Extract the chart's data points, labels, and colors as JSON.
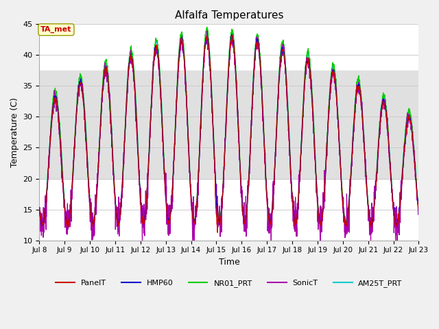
{
  "title": "Alfalfa Temperatures",
  "xlabel": "Time",
  "ylabel": "Temperature (C)",
  "annotation": "TA_met",
  "ylim": [
    10,
    45
  ],
  "xlim_days": [
    8,
    23
  ],
  "bg_band_ymin": 20,
  "bg_band_ymax": 37.5,
  "series_colors": {
    "PanelT": "#cc0000",
    "HMP60": "#0000cc",
    "NR01_PRT": "#00cc00",
    "SonicT": "#aa00aa",
    "AM25T_PRT": "#00cccc"
  },
  "legend_colors": [
    "#cc0000",
    "#0000cc",
    "#00cc00",
    "#aa00aa",
    "#00cccc"
  ],
  "legend_labels": [
    "PanelT",
    "HMP60",
    "NR01_PRT",
    "SonicT",
    "AM25T_PRT"
  ],
  "tick_labels": [
    "Jul 8",
    "Jul 9",
    "Jul 10",
    "Jul 11",
    "Jul 12",
    "Jul 13",
    "Jul 14",
    "Jul 15",
    "Jul 16",
    "Jul 17",
    "Jul 18",
    "Jul 19",
    "Jul 20",
    "Jul 21",
    "Jul 22",
    "Jul 23"
  ],
  "yticks": [
    10,
    15,
    20,
    25,
    30,
    35,
    40,
    45
  ],
  "background_color": "#f0f0f0",
  "plot_bg_color": "#ffffff",
  "grid_color": "#cccccc",
  "figsize": [
    6.4,
    4.8
  ],
  "dpi": 100
}
